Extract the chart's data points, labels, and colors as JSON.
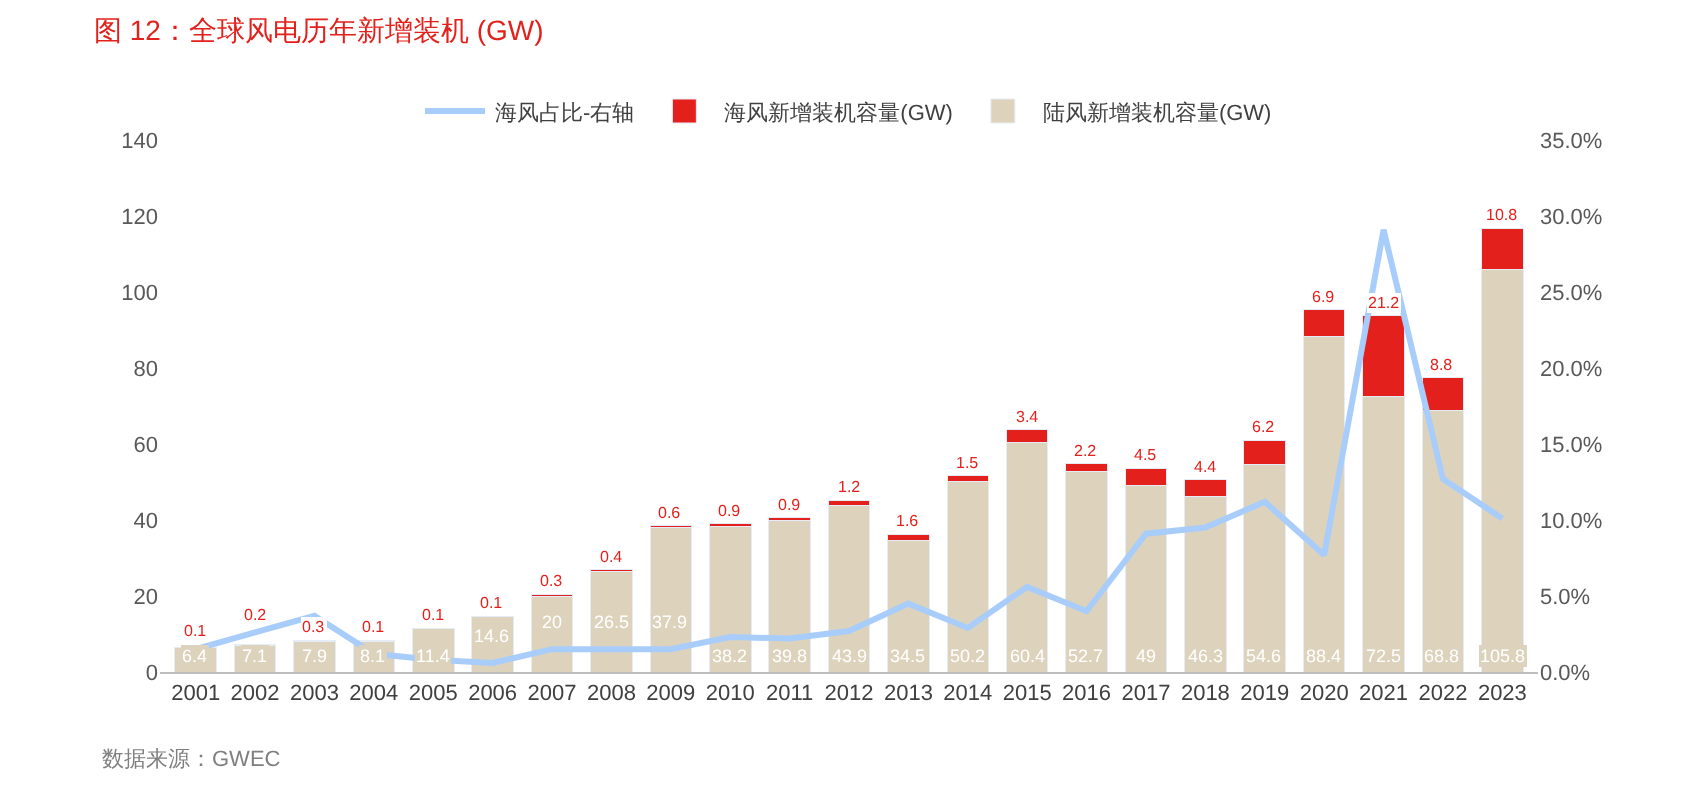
{
  "chart_data": {
    "type": "bar",
    "title": "图 12：全球风电历年新增装机 (GW)",
    "stacked": true,
    "legend": "top",
    "categories": [
      "2001",
      "2002",
      "2003",
      "2004",
      "2005",
      "2006",
      "2007",
      "2008",
      "2009",
      "2010",
      "2011",
      "2012",
      "2013",
      "2014",
      "2015",
      "2016",
      "2017",
      "2018",
      "2019",
      "2020",
      "2021",
      "2022",
      "2023"
    ],
    "series": [
      {
        "name": "陆风新增装机容量(GW)",
        "color": "#ddd3bc",
        "data_labels": true,
        "values": [
          6.4,
          7.1,
          7.9,
          8.1,
          11.4,
          14.6,
          20,
          26.5,
          37.9,
          38.2,
          39.8,
          43.9,
          34.5,
          50.2,
          60.4,
          52.7,
          49,
          46.3,
          54.6,
          88.4,
          72.5,
          68.8,
          105.8
        ]
      },
      {
        "name": "海风新增装机容量(GW)",
        "color": "#e3201b",
        "data_labels": true,
        "values": [
          0.1,
          0.2,
          0.3,
          0.1,
          0.1,
          0.1,
          0.3,
          0.4,
          0.6,
          0.9,
          0.9,
          1.2,
          1.6,
          1.5,
          3.4,
          2.2,
          4.5,
          4.4,
          6.2,
          6.9,
          21.2,
          8.8,
          10.8
        ]
      },
      {
        "name": "海风占比-右轴",
        "type": "line",
        "axis": "y2",
        "color": "#a9cdfa",
        "marker": "none",
        "values": [
          1.5,
          2.6,
          3.7,
          1.2,
          0.8,
          0.6,
          1.5,
          1.5,
          1.5,
          2.3,
          2.2,
          2.7,
          4.5,
          2.9,
          5.6,
          4.0,
          9.1,
          9.5,
          11.2,
          7.7,
          29.1,
          12.7,
          10.1
        ]
      }
    ],
    "ylim": [
      0,
      140
    ],
    "yticks": [
      0,
      20,
      40,
      60,
      80,
      100,
      120,
      140
    ],
    "y2lim": [
      0,
      35
    ],
    "y2ticks": [
      {
        "value": 0,
        "label": "0.0%"
      },
      {
        "value": 5,
        "label": "5.0%"
      },
      {
        "value": 10,
        "label": "10.0%"
      },
      {
        "value": 15,
        "label": "15.0%"
      },
      {
        "value": 20,
        "label": "20.0%"
      },
      {
        "value": 25,
        "label": "25.0%"
      },
      {
        "value": 30,
        "label": "30.0%"
      },
      {
        "value": 35,
        "label": "35.0%"
      }
    ],
    "annotations": [
      "数据来源：GWEC"
    ]
  }
}
